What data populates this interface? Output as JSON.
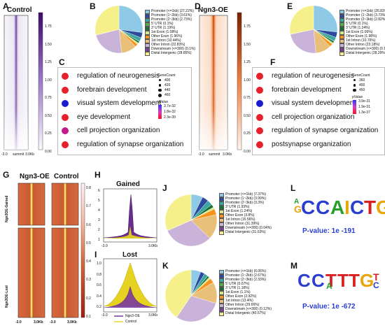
{
  "panels": {
    "A": "A",
    "B": "B",
    "C": "C",
    "D": "D",
    "E": "E",
    "F": "F",
    "G": "G",
    "H": "H",
    "I": "I",
    "J": "J",
    "K": "K",
    "L": "L",
    "M": "M"
  },
  "heatA": {
    "title": "Control",
    "xticks": [
      "-3.0",
      "summit",
      "3.0Kb"
    ],
    "scale": [
      "1.75",
      "1.50",
      "1.25",
      "1.00",
      "0.75",
      "0.50",
      "0.25",
      "0.00"
    ]
  },
  "heatD": {
    "title": "Ngn3-OE",
    "xticks": [
      "-3.0",
      "summit",
      "3.0Kb"
    ],
    "scale": [
      "1.75",
      "1.50",
      "1.25",
      "1.00",
      "0.75",
      "0.50",
      "0.25",
      "0.00"
    ]
  },
  "legendB": [
    "Promoter (<=1kb) (27.22%)",
    "Promoter (1~2kb) (3.61%)",
    "Promoter (2~3kb) (2.73%)",
    "5' UTR (0.1%)",
    "3' UTR (1.19%)",
    "1st Exon (1.08%)",
    "Other Exon (1.96%)",
    "1st Intron (10.44%)",
    "Other Intron (22.83%)",
    "Downstream (<=300) (0.1%)",
    "Distal Intergenic (28.85%)"
  ],
  "legendE": [
    "Promoter (<=1kb) (26.83%)",
    "Promoter (1~2kb) (3.73%)",
    "Promoter (2~3kb) (2.82%)",
    "5' UTR (0.1%)",
    "3' UTR (1.24%)",
    "1st Exon (1.06%)",
    "Other Exon (1.98%)",
    "1st Intron (10.76%)",
    "Other Intron (23.18%)",
    "Downstream (<=300) (0.1%)",
    "Distal Intergenic (28.29%)"
  ],
  "legendJ": [
    "Promoter (<=1kb) (7.37%)",
    "Promoter (1~2kb) (3.99%)",
    "Promoter (2~3kb) (3.3%)",
    "3' UTR (1.93%)",
    "1st Exon (1.24%)",
    "Other Exon (3.8%)",
    "1st Intron (15.56%)",
    "Other Intron (31.39%)",
    "Downstream (<=300) (0.04%)",
    "Distal Intergenic (31.63%)"
  ],
  "legendK": [
    "Promoter (<=1kb) (6.06%)",
    "Promoter (1~2kb) (2.67%)",
    "Promoter (2~3kb) (2.33%)",
    "5' UTR (0.07%)",
    "3' UTR (1.18%)",
    "1st Exon (1.1%)",
    "Other Exon (2.92%)",
    "1st Intron (13.4%)",
    "Other Intron (29.66%)",
    "Downstream (<=300) (0.12%)",
    "Distal Intergenic (40.57%)"
  ],
  "goC": [
    "regulation of neurogenesis",
    "forebrain development",
    "visual system development",
    "eye development",
    "cell projection organization",
    "regulation of synapse organization"
  ],
  "goF": [
    "regulation of neurogenesis",
    "forebrain development",
    "visual system development",
    "cell projection organization",
    "regulation of synapse organization",
    "postsynapse organization"
  ],
  "goCcolors": [
    "#e8202a",
    "#e8202a",
    "#1a1ad0",
    "#e8202a",
    "#c41a8a",
    "#e8202a"
  ],
  "goFcolors": [
    "#e8202a",
    "#e8202a",
    "#1a1ad0",
    "#e8202a",
    "#e8202a",
    "#e8202a"
  ],
  "goClegend": {
    "count": "GeneCount",
    "c1": "400",
    "c2": "420",
    "c3": "440",
    "c4": "460",
    "p": "pValue",
    "p1": "3.7e-32",
    "p2": "1.8e-32",
    "p3": "2.3e-39"
  },
  "goFlegend": {
    "count": "GeneCount",
    "c1": "360",
    "c2": "400",
    "c3": "450",
    "p": "pValue",
    "p1": "3.9e-31",
    "p2": "1.9e-31",
    "p3": "1.3e-37"
  },
  "heatG": {
    "col1": "Ngn3-OE",
    "col2": "Control",
    "row1": "Ngn3OE-Gained",
    "row2": "Ngn3OE-Lost",
    "xticks": [
      "-3.0",
      "3.0Kb",
      "-3.0",
      "3.0Kb"
    ],
    "scale": [
      "0.8",
      "0.7",
      "0.6",
      "0.5",
      "0.4",
      "0.3",
      "0.2",
      "0.1"
    ]
  },
  "profH": {
    "title": "Gained",
    "xticks": [
      "-3.0",
      "3.0Kb"
    ],
    "yticks": [
      "6",
      "5",
      "4",
      "3",
      "2",
      "1"
    ]
  },
  "profI": {
    "title": "Lost",
    "xticks": [
      "-3.0",
      "3.0Kb"
    ],
    "yticks": [
      "1.0",
      "0.8",
      "0.6",
      "0.4",
      "0.2"
    ],
    "legend": [
      "Ngn3-OE",
      "Control"
    ]
  },
  "motifL": {
    "seq": "GCCAICTGTT",
    "p": "P-value: 1e -191"
  },
  "motifM": {
    "seq": "CCTATTGTC",
    "p": "P-value: 1e -672"
  },
  "colors": {
    "p1": "#8ecae6",
    "p2": "#2e4a9e",
    "p3": "#3aa6a0",
    "utr5": "#5aa84a",
    "utr3": "#1a6e32",
    "exon1": "#d6e98a",
    "oexon": "#f7941d",
    "intron1": "#e8c07a",
    "ointron": "#c9b3d8",
    "down": "#7b3f98",
    "distal": "#f5f08a"
  }
}
